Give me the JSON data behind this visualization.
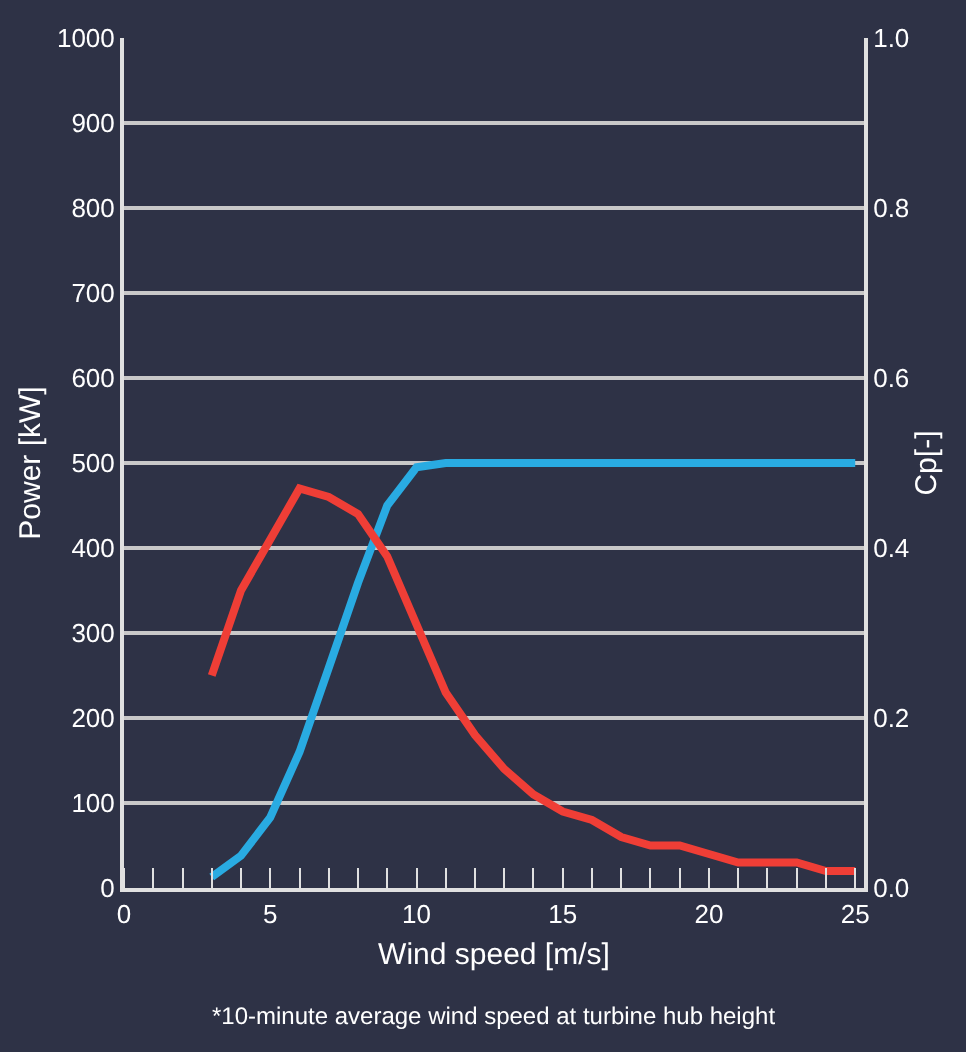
{
  "chart_data": {
    "type": "line",
    "xlabel": "Wind speed [m/s]",
    "ylabel": "Power [kW]",
    "y2label": "Cp[-]",
    "annotations": [
      "*10-minute average wind speed at turbine hub height"
    ],
    "x": [
      3,
      4,
      5,
      6,
      7,
      8,
      9,
      10,
      11,
      12,
      13,
      14,
      15,
      16,
      17,
      18,
      19,
      20,
      21,
      22,
      23,
      24,
      25
    ],
    "series": [
      {
        "color": "#29abe2",
        "values": [
          13,
          38,
          83,
          160,
          259,
          359,
          450,
          495,
          500,
          500,
          500,
          500,
          500,
          500,
          500,
          500,
          500,
          500,
          500,
          500,
          500,
          500,
          500
        ]
      },
      {
        "color": "#ef3e36",
        "axis": "y2",
        "values": [
          0.25,
          0.35,
          0.41,
          0.47,
          0.46,
          0.44,
          0.39,
          0.31,
          0.23,
          0.18,
          0.14,
          0.11,
          0.09,
          0.08,
          0.06,
          0.05,
          0.05,
          0.04,
          0.03,
          0.03,
          0.03,
          0.02,
          0.02
        ]
      }
    ],
    "xlim": [
      0,
      25.3
    ],
    "xticks": [
      0,
      5,
      10,
      15,
      20,
      25
    ],
    "ylim": [
      0,
      1000
    ],
    "yticks": [
      0,
      100,
      200,
      300,
      400,
      500,
      600,
      700,
      800,
      900,
      1000
    ],
    "y2lim": [
      0,
      1
    ],
    "y2ticks": [
      {
        "value": 0,
        "label": "0.0"
      },
      0.2,
      0.4,
      0.6,
      0.8,
      {
        "value": 1,
        "label": "1.0"
      }
    ],
    "grid": "y",
    "legend": false,
    "marker": "none",
    "line_style": "solid"
  }
}
